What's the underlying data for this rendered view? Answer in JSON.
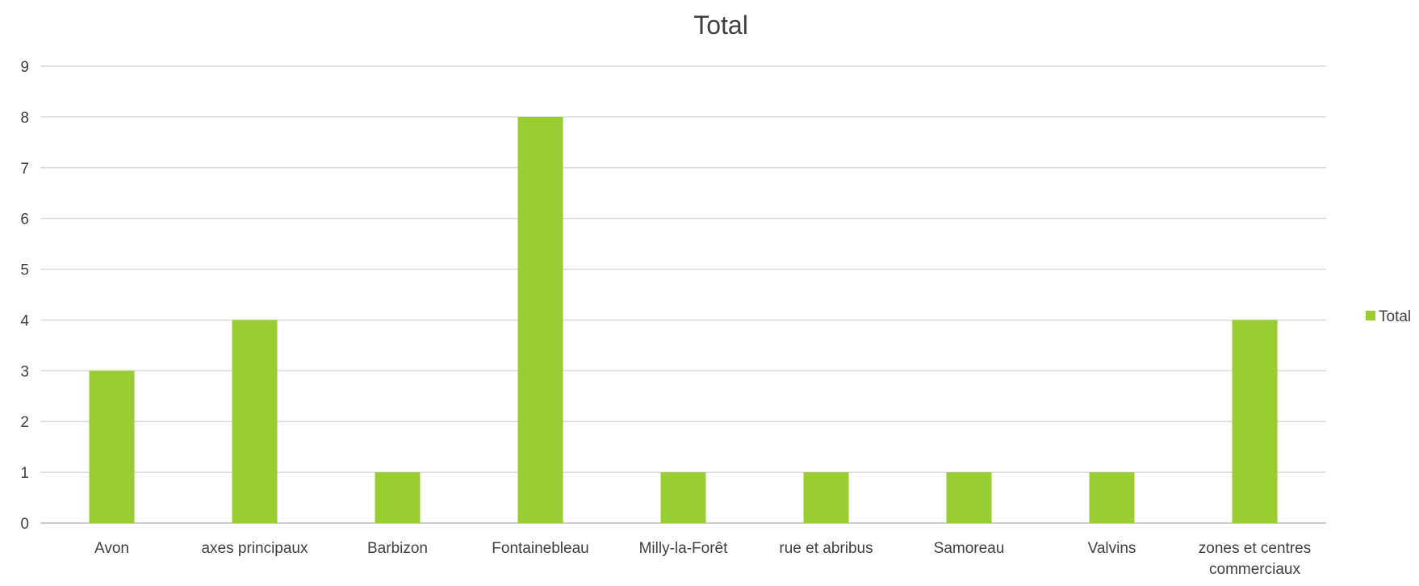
{
  "chart_data": {
    "type": "bar",
    "title": "Total",
    "xlabel": "",
    "ylabel": "",
    "categories": [
      "Avon",
      "axes principaux",
      "Barbizon",
      "Fontainebleau",
      "Milly-la-Forêt",
      "rue et abribus",
      "Samoreau",
      "Valvins",
      "zones et centres commerciaux"
    ],
    "series": [
      {
        "name": "Total",
        "color": "#9ACD32",
        "values": [
          3,
          4,
          1,
          8,
          1,
          1,
          1,
          1,
          4
        ]
      }
    ],
    "ylim": [
      0,
      9
    ],
    "yticks": [
      "0",
      "1",
      "2",
      "3",
      "4",
      "5",
      "6",
      "7",
      "8",
      "9"
    ],
    "grid": true,
    "legend": "right"
  }
}
